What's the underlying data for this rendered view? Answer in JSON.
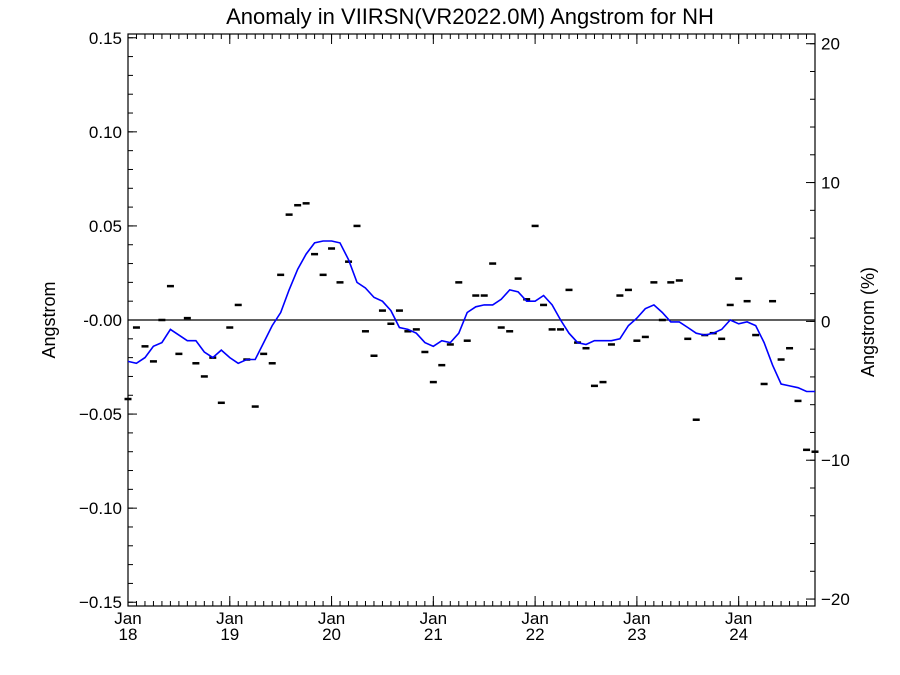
{
  "chart_data": {
    "type": "line",
    "title": "Anomaly in VIIRSN(VR2022.0M) Angstrom for NH",
    "ylabel": "Angstrom",
    "ylabel_right": "Angstrom (%)",
    "xlabel": "",
    "ylim": [
      -0.152,
      0.152
    ],
    "ylim_right": [
      -20.5,
      20.7
    ],
    "xlim": [
      2018.0,
      2024.75
    ],
    "grid": false,
    "legend": "none",
    "colors": {
      "line": "#0000ff",
      "marks": "#000000",
      "zero_line": "#000000"
    },
    "y_ticks": [
      {
        "value": 0.15,
        "label": "0.15"
      },
      {
        "value": 0.1,
        "label": "0.10"
      },
      {
        "value": 0.05,
        "label": "0.05"
      },
      {
        "value": 0.0,
        "label": "-0.00"
      },
      {
        "value": -0.05,
        "label": "−0.05"
      },
      {
        "value": -0.1,
        "label": "−0.10"
      },
      {
        "value": -0.15,
        "label": "−0.15"
      }
    ],
    "y_right_ticks": [
      {
        "value": 20,
        "label": "20"
      },
      {
        "value": 10,
        "label": "10"
      },
      {
        "value": 0,
        "label": "0"
      },
      {
        "value": -10,
        "label": "−10"
      },
      {
        "value": -20,
        "label": "−20"
      }
    ],
    "x_ticks": [
      {
        "value": 2018.0,
        "month": "Jan",
        "year": "18"
      },
      {
        "value": 2019.0,
        "month": "Jan",
        "year": "19"
      },
      {
        "value": 2020.0,
        "month": "Jan",
        "year": "20"
      },
      {
        "value": 2021.0,
        "month": "Jan",
        "year": "21"
      },
      {
        "value": 2022.0,
        "month": "Jan",
        "year": "22"
      },
      {
        "value": 2023.0,
        "month": "Jan",
        "year": "23"
      },
      {
        "value": 2024.0,
        "month": "Jan",
        "year": "24"
      }
    ],
    "series": [
      {
        "kind": "monthly-marks",
        "x": [
          2018.0,
          2018.083,
          2018.167,
          2018.25,
          2018.333,
          2018.417,
          2018.5,
          2018.583,
          2018.667,
          2018.75,
          2018.833,
          2018.917,
          2019.0,
          2019.083,
          2019.167,
          2019.25,
          2019.333,
          2019.417,
          2019.5,
          2019.583,
          2019.667,
          2019.75,
          2019.833,
          2019.917,
          2020.0,
          2020.083,
          2020.167,
          2020.25,
          2020.333,
          2020.417,
          2020.5,
          2020.583,
          2020.667,
          2020.75,
          2020.833,
          2020.917,
          2021.0,
          2021.083,
          2021.167,
          2021.25,
          2021.333,
          2021.417,
          2021.5,
          2021.583,
          2021.667,
          2021.75,
          2021.833,
          2021.917,
          2022.0,
          2022.083,
          2022.167,
          2022.25,
          2022.333,
          2022.417,
          2022.5,
          2022.583,
          2022.667,
          2022.75,
          2022.833,
          2022.917,
          2023.0,
          2023.083,
          2023.167,
          2023.25,
          2023.333,
          2023.417,
          2023.5,
          2023.583,
          2023.667,
          2023.75,
          2023.833,
          2023.917,
          2024.0,
          2024.083,
          2024.167,
          2024.25,
          2024.333,
          2024.417,
          2024.5,
          2024.583,
          2024.667,
          2024.75
        ],
        "values": [
          -0.042,
          -0.004,
          -0.014,
          -0.022,
          0.0,
          0.018,
          -0.018,
          0.001,
          -0.023,
          -0.03,
          -0.02,
          -0.044,
          -0.004,
          0.008,
          -0.021,
          -0.046,
          -0.018,
          -0.023,
          0.024,
          0.056,
          0.061,
          0.062,
          0.035,
          0.024,
          0.038,
          0.02,
          0.031,
          0.05,
          -0.006,
          -0.019,
          0.005,
          -0.002,
          0.005,
          -0.006,
          -0.005,
          -0.017,
          -0.033,
          -0.024,
          -0.013,
          0.02,
          -0.011,
          0.013,
          0.013,
          0.03,
          -0.004,
          -0.006,
          0.022,
          0.011,
          0.05,
          0.008,
          -0.005,
          -0.005,
          0.016,
          -0.012,
          -0.015,
          -0.035,
          -0.033,
          -0.013,
          0.013,
          0.016,
          -0.011,
          -0.009,
          0.02,
          -0.0,
          0.02,
          0.021,
          -0.01,
          -0.053,
          -0.008,
          -0.007,
          -0.01,
          0.008,
          0.022,
          0.01,
          -0.008,
          -0.034,
          0.01,
          -0.021,
          -0.015,
          -0.043,
          -0.069,
          -0.07
        ]
      },
      {
        "kind": "smoothed-line",
        "x": [
          2018.0,
          2018.083,
          2018.167,
          2018.25,
          2018.333,
          2018.417,
          2018.5,
          2018.583,
          2018.667,
          2018.75,
          2018.833,
          2018.917,
          2019.0,
          2019.083,
          2019.167,
          2019.25,
          2019.333,
          2019.417,
          2019.5,
          2019.583,
          2019.667,
          2019.75,
          2019.833,
          2019.917,
          2020.0,
          2020.083,
          2020.167,
          2020.25,
          2020.333,
          2020.417,
          2020.5,
          2020.583,
          2020.667,
          2020.75,
          2020.833,
          2020.917,
          2021.0,
          2021.083,
          2021.167,
          2021.25,
          2021.333,
          2021.417,
          2021.5,
          2021.583,
          2021.667,
          2021.75,
          2021.833,
          2021.917,
          2022.0,
          2022.083,
          2022.167,
          2022.25,
          2022.333,
          2022.417,
          2022.5,
          2022.583,
          2022.667,
          2022.75,
          2022.833,
          2022.917,
          2023.0,
          2023.083,
          2023.167,
          2023.25,
          2023.333,
          2023.417,
          2023.5,
          2023.583,
          2023.667,
          2023.75,
          2023.833,
          2023.917,
          2024.0,
          2024.083,
          2024.167,
          2024.25,
          2024.333,
          2024.417,
          2024.5,
          2024.583,
          2024.667,
          2024.75
        ],
        "values": [
          -0.022,
          -0.023,
          -0.02,
          -0.014,
          -0.012,
          -0.005,
          -0.008,
          -0.011,
          -0.011,
          -0.017,
          -0.02,
          -0.016,
          -0.02,
          -0.023,
          -0.021,
          -0.021,
          -0.012,
          -0.003,
          0.004,
          0.016,
          0.027,
          0.035,
          0.041,
          0.042,
          0.042,
          0.041,
          0.032,
          0.02,
          0.017,
          0.012,
          0.01,
          0.005,
          -0.004,
          -0.005,
          -0.007,
          -0.012,
          -0.014,
          -0.011,
          -0.012,
          -0.007,
          0.004,
          0.007,
          0.008,
          0.008,
          0.011,
          0.016,
          0.015,
          0.01,
          0.01,
          0.013,
          0.008,
          -0.0,
          -0.007,
          -0.012,
          -0.013,
          -0.011,
          -0.011,
          -0.011,
          -0.01,
          -0.003,
          0.001,
          0.006,
          0.008,
          0.004,
          -0.001,
          -0.001,
          -0.004,
          -0.007,
          -0.008,
          -0.007,
          -0.005,
          0.0,
          -0.002,
          -0.001,
          -0.003,
          -0.012,
          -0.024,
          -0.034,
          -0.035,
          -0.036,
          -0.038,
          -0.038
        ]
      }
    ]
  }
}
